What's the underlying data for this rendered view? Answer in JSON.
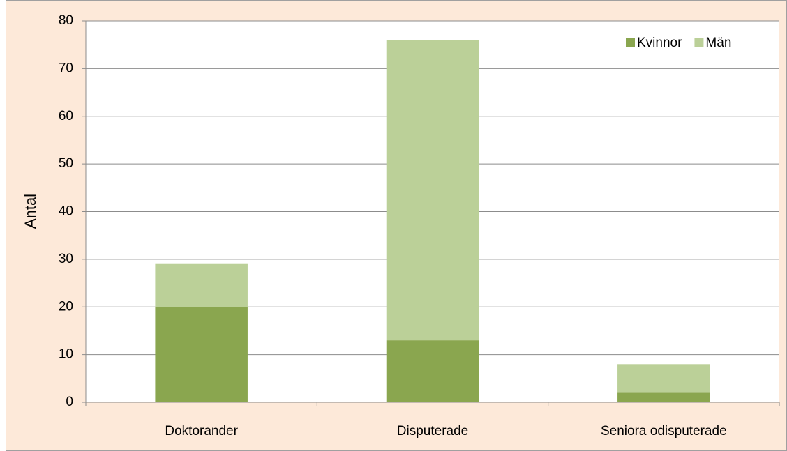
{
  "chart_data": {
    "type": "stacked_bar",
    "y_label": "Antal",
    "categories": [
      "Doktorander",
      "Disputerade",
      "Seniora odisputerade"
    ],
    "series": [
      {
        "name": "Kvinnor",
        "color": "#8aa64f",
        "values": [
          20,
          13,
          2
        ]
      },
      {
        "name": "Män",
        "color": "#bbd098",
        "values": [
          9,
          63,
          6
        ]
      }
    ],
    "ylim": [
      0,
      80
    ],
    "yticks": [
      0,
      10,
      20,
      30,
      40,
      50,
      60,
      70,
      80
    ],
    "grid": true,
    "legend": "top-right"
  }
}
